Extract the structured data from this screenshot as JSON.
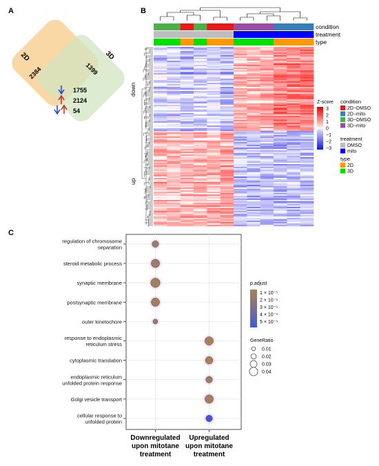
{
  "panels": {
    "a": "A",
    "b": "B",
    "c": "C"
  },
  "venn": {
    "set1_label": "2D",
    "set2_label": "3D",
    "set1_only": "2384",
    "set2_only": "1399",
    "overlap_down": "1755",
    "overlap_up": "2124",
    "overlap_mixed": "54",
    "colors": {
      "set1": "#f8d49c",
      "set2": "#d8e8c8",
      "down_arrow": "#1a3cc8",
      "up_arrow": "#d81e1e"
    }
  },
  "heatmap": {
    "annotation_labels": [
      "condition",
      "treatment",
      "type"
    ],
    "row_cluster_labels": [
      "down",
      "up"
    ],
    "zscore_title": "Z-score",
    "zscore_ticks": [
      "3",
      "2",
      "1",
      "0",
      "−1",
      "−2",
      "−3"
    ],
    "legend_condition_title": "condition",
    "legend_condition": [
      {
        "label": "2D−DMSO",
        "color": "#e41a1c"
      },
      {
        "label": "2D−mito",
        "color": "#377eb8"
      },
      {
        "label": "3D−DMSO",
        "color": "#4daf4a"
      },
      {
        "label": "3D−mito",
        "color": "#984ea3"
      }
    ],
    "legend_treatment_title": "treatment",
    "legend_treatment": [
      {
        "label": "DMSO",
        "color": "#bebebe"
      },
      {
        "label": "mito",
        "color": "#0000ff"
      }
    ],
    "legend_type_title": "type",
    "legend_type": [
      {
        "label": "2D",
        "color": "#ff9900"
      },
      {
        "label": "3D",
        "color": "#00e000"
      }
    ]
  },
  "chart_data": {
    "type": "scatter",
    "description_kind": "GO enrichment dot plot",
    "categories": [
      "Downregulated upon mitotane treatment",
      "Upregulated upon mitotane treatment"
    ],
    "x_labels": [
      [
        "Downregulated",
        "upon mitotane",
        "treatment"
      ],
      [
        "Upregulated",
        "upon mitotane",
        "treatment"
      ]
    ],
    "terms": [
      {
        "label": [
          "regulation of chromosome",
          "separation"
        ],
        "group": 0,
        "gene_ratio": 0.02,
        "p_adjust": 1.5e-05
      },
      {
        "label": [
          "steroid metabolic process"
        ],
        "group": 0,
        "gene_ratio": 0.03,
        "p_adjust": 1.5e-05
      },
      {
        "label": [
          "synaptic membrane"
        ],
        "group": 0,
        "gene_ratio": 0.035,
        "p_adjust": 1.2e-05
      },
      {
        "label": [
          "postsynaptic membrane"
        ],
        "group": 0,
        "gene_ratio": 0.03,
        "p_adjust": 1.2e-05
      },
      {
        "label": [
          "outer kinetochore"
        ],
        "group": 0,
        "gene_ratio": 0.01,
        "p_adjust": 1.5e-05
      },
      {
        "label": [
          "response to endoplasmic",
          "reticulum stress"
        ],
        "group": 1,
        "gene_ratio": 0.03,
        "p_adjust": 1e-05
      },
      {
        "label": [
          "cytoplasmic translation"
        ],
        "group": 1,
        "gene_ratio": 0.025,
        "p_adjust": 1e-05
      },
      {
        "label": [
          "endoplasmic reticulum",
          "unfolded protein response"
        ],
        "group": 1,
        "gene_ratio": 0.02,
        "p_adjust": 1.5e-05
      },
      {
        "label": [
          "Golgi vesicle transport"
        ],
        "group": 1,
        "gene_ratio": 0.03,
        "p_adjust": 1.2e-05
      },
      {
        "label": [
          "cellular response to",
          "unfolded protein"
        ],
        "group": 1,
        "gene_ratio": 0.02,
        "p_adjust": 5e-05
      }
    ],
    "legend_padjust_title": "p.adjust",
    "legend_padjust_ticks": [
      "1 × 10⁻⁵",
      "2 × 10⁻⁵",
      "3 × 10⁻⁵",
      "4 × 10⁻⁵",
      "5 × 10⁻⁵"
    ],
    "legend_generatio_title": "GeneRatio",
    "legend_generatio_values": [
      0.01,
      0.02,
      0.03,
      0.04
    ],
    "legend_generatio_labels": [
      "0.01",
      "0.02",
      "0.03",
      "0.04"
    ],
    "grid": true,
    "colors": {
      "low": "#a58258",
      "high": "#3c5ad8",
      "halo": "#f4c8f0"
    }
  }
}
